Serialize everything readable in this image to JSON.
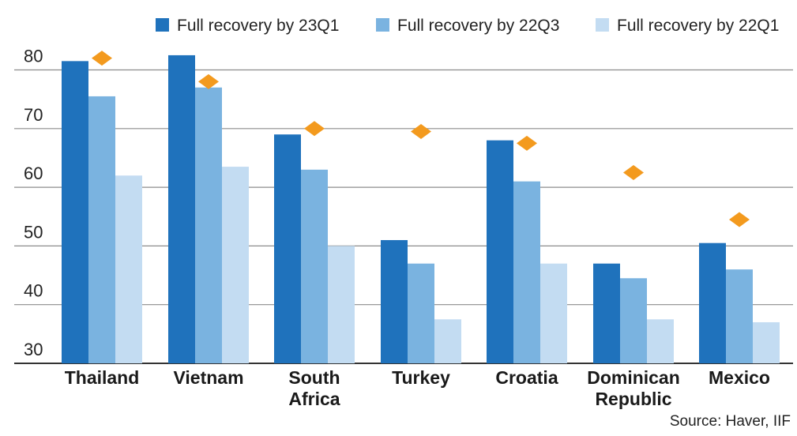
{
  "chart_data": {
    "type": "bar",
    "categories": [
      [
        "Thailand"
      ],
      [
        "Vietnam"
      ],
      [
        "South",
        "Africa"
      ],
      [
        "Turkey"
      ],
      [
        "Croatia"
      ],
      [
        "Dominican",
        "Republic"
      ],
      [
        "Mexico"
      ]
    ],
    "series": [
      {
        "name": "Full recovery by 23Q1",
        "color": "#1f72bc",
        "values": [
          81.5,
          82.5,
          69,
          51,
          68,
          47,
          50.5
        ]
      },
      {
        "name": "Full recovery by 22Q3",
        "color": "#7ab3e0",
        "values": [
          75.5,
          77,
          63,
          47,
          61,
          44.5,
          46
        ]
      },
      {
        "name": "Full recovery by 22Q1",
        "color": "#c3dcf2",
        "values": [
          62,
          63.5,
          50,
          37.5,
          47,
          37.5,
          37
        ]
      }
    ],
    "markers": {
      "shape": "diamond",
      "color": "#f39a1e",
      "values": [
        82,
        78,
        70,
        69.5,
        67.5,
        62.5,
        54.5
      ]
    },
    "yticks": [
      30,
      40,
      50,
      60,
      70,
      80
    ],
    "ylim": [
      30,
      85
    ],
    "grid": true,
    "legend_position": "top-right",
    "source": "Source: Haver, IIF"
  }
}
